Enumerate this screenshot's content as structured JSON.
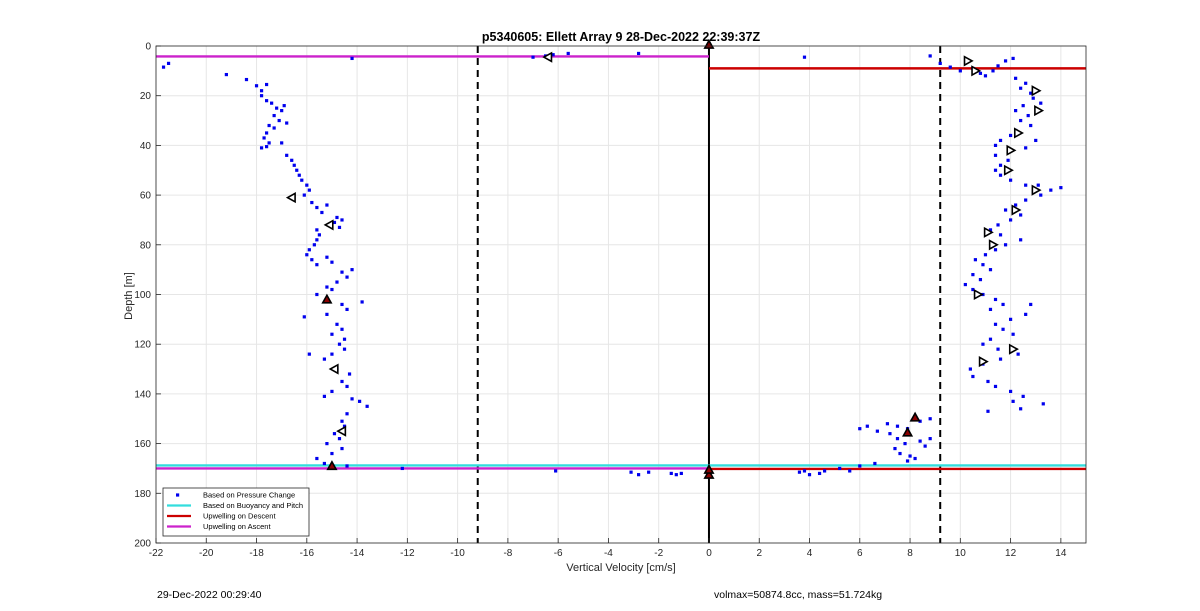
{
  "footer": {
    "left": "29-Dec-2022 00:29:40",
    "right": "volmax=50874.8cc, mass=51.724kg"
  },
  "colors": {
    "pressure": "#0000ee",
    "buoyancy": "#33dddd",
    "descent": "#cc0000",
    "ascent": "#cc22cc",
    "grid": "#e6e6e6",
    "axis": "#262626"
  },
  "chart_data": {
    "type": "scatter",
    "title": "p5340605: Ellett Array 9 28-Dec-2022 22:39:37Z",
    "xlabel": "Vertical Velocity [cm/s]",
    "ylabel": "Depth [m]",
    "xlim": [
      -22,
      15
    ],
    "ylim": [
      0,
      200
    ],
    "y_reversed": true,
    "xticks": [
      -22,
      -20,
      -18,
      -16,
      -14,
      -12,
      -10,
      -8,
      -6,
      -4,
      -2,
      0,
      2,
      4,
      6,
      8,
      10,
      12,
      14
    ],
    "yticks": [
      0,
      20,
      40,
      60,
      80,
      100,
      120,
      140,
      160,
      180,
      200
    ],
    "grid": true,
    "legend_position": "bottom-left",
    "legend": [
      "Based on Pressure Change",
      "Based on Buoyancy and Pitch",
      "Upwelling on Descent",
      "Upwelling on Ascent"
    ],
    "vertical_lines": [
      {
        "x": -9.2,
        "style": "dashed"
      },
      {
        "x": 9.2,
        "style": "dashed"
      },
      {
        "x": 0,
        "style": "solid"
      }
    ],
    "series": [
      {
        "name": "Based on Pressure Change",
        "points": [
          [
            -21.7,
            8.5
          ],
          [
            -21.5,
            7
          ],
          [
            -19.2,
            11.5
          ],
          [
            -18.4,
            13.5
          ],
          [
            -18.0,
            16
          ],
          [
            -17.8,
            18
          ],
          [
            -17.6,
            15.5
          ],
          [
            -17.8,
            20
          ],
          [
            -17.6,
            22
          ],
          [
            -17.4,
            23
          ],
          [
            -17.2,
            25
          ],
          [
            -17.0,
            26
          ],
          [
            -16.9,
            24
          ],
          [
            -17.3,
            28
          ],
          [
            -17.1,
            30
          ],
          [
            -16.8,
            31
          ],
          [
            -17.5,
            32
          ],
          [
            -17.6,
            35
          ],
          [
            -17.3,
            33
          ],
          [
            -17.7,
            37
          ],
          [
            -17.5,
            39
          ],
          [
            -17.8,
            41
          ],
          [
            -17.6,
            40.5
          ],
          [
            -17.0,
            39
          ],
          [
            -16.8,
            44
          ],
          [
            -16.6,
            46
          ],
          [
            -16.5,
            48
          ],
          [
            -16.4,
            50
          ],
          [
            -16.3,
            52
          ],
          [
            -16.2,
            54
          ],
          [
            -16.0,
            56
          ],
          [
            -15.9,
            58
          ],
          [
            -16.1,
            60
          ],
          [
            -15.8,
            63
          ],
          [
            -15.6,
            65
          ],
          [
            -15.4,
            67
          ],
          [
            -15.2,
            64
          ],
          [
            -14.8,
            69
          ],
          [
            -14.6,
            70
          ],
          [
            -14.9,
            71
          ],
          [
            -14.7,
            73
          ],
          [
            -15.6,
            74
          ],
          [
            -15.5,
            76
          ],
          [
            -15.6,
            78
          ],
          [
            -15.7,
            80
          ],
          [
            -15.9,
            82
          ],
          [
            -16.0,
            84
          ],
          [
            -15.8,
            86
          ],
          [
            -15.6,
            88
          ],
          [
            -15.2,
            85
          ],
          [
            -15.0,
            87
          ],
          [
            -14.6,
            91
          ],
          [
            -14.4,
            93
          ],
          [
            -14.2,
            90
          ],
          [
            -14.8,
            95
          ],
          [
            -15.2,
            97
          ],
          [
            -15.6,
            100
          ],
          [
            -15.0,
            98
          ],
          [
            -14.6,
            104
          ],
          [
            -14.4,
            106
          ],
          [
            -13.8,
            103
          ],
          [
            -15.2,
            108
          ],
          [
            -16.1,
            109
          ],
          [
            -14.8,
            112
          ],
          [
            -14.6,
            114
          ],
          [
            -15.0,
            116
          ],
          [
            -14.5,
            118
          ],
          [
            -14.7,
            120
          ],
          [
            -14.5,
            122
          ],
          [
            -15.0,
            124
          ],
          [
            -15.9,
            124
          ],
          [
            -15.3,
            126
          ],
          [
            -14.8,
            130
          ],
          [
            -14.3,
            132
          ],
          [
            -14.6,
            135
          ],
          [
            -14.4,
            137
          ],
          [
            -15.0,
            139
          ],
          [
            -15.3,
            141
          ],
          [
            -14.2,
            142
          ],
          [
            -13.9,
            143
          ],
          [
            -13.6,
            145
          ],
          [
            -14.4,
            148
          ],
          [
            -14.6,
            151
          ],
          [
            -14.5,
            153
          ],
          [
            -14.9,
            156
          ],
          [
            -14.7,
            158
          ],
          [
            -15.2,
            160
          ],
          [
            -14.6,
            162
          ],
          [
            -15.0,
            164
          ],
          [
            -15.6,
            166
          ],
          [
            -15.3,
            168
          ],
          [
            -14.4,
            169
          ],
          [
            -12.2,
            170
          ],
          [
            -6.2,
            3.5
          ],
          [
            -6.5,
            4
          ],
          [
            -7.0,
            4.5
          ],
          [
            -5.6,
            3
          ],
          [
            -2.8,
            3
          ],
          [
            -6.1,
            171
          ],
          [
            -3.1,
            171.5
          ],
          [
            -2.8,
            172.5
          ],
          [
            -2.4,
            171.5
          ],
          [
            -1.5,
            172
          ],
          [
            -1.3,
            172.5
          ],
          [
            -1.1,
            172
          ],
          [
            -14.2,
            5
          ],
          [
            3.8,
            4.5
          ],
          [
            8.8,
            4
          ],
          [
            9.2,
            7
          ],
          [
            9.6,
            8.5
          ],
          [
            10.0,
            10
          ],
          [
            10.3,
            6
          ],
          [
            10.5,
            9
          ],
          [
            10.8,
            11
          ],
          [
            11.0,
            12
          ],
          [
            11.3,
            10
          ],
          [
            11.5,
            8
          ],
          [
            11.8,
            6
          ],
          [
            12.1,
            5
          ],
          [
            12.2,
            13
          ],
          [
            12.6,
            15
          ],
          [
            12.4,
            17
          ],
          [
            12.8,
            19
          ],
          [
            12.9,
            21
          ],
          [
            13.2,
            23
          ],
          [
            12.5,
            24
          ],
          [
            12.2,
            26
          ],
          [
            12.7,
            28
          ],
          [
            12.4,
            30
          ],
          [
            12.8,
            32
          ],
          [
            12.2,
            34
          ],
          [
            12.0,
            36
          ],
          [
            11.6,
            38
          ],
          [
            11.4,
            40
          ],
          [
            13.0,
            38
          ],
          [
            12.6,
            41
          ],
          [
            11.4,
            44
          ],
          [
            11.9,
            46
          ],
          [
            11.6,
            48
          ],
          [
            11.4,
            50
          ],
          [
            11.6,
            52
          ],
          [
            12.0,
            54
          ],
          [
            12.6,
            56
          ],
          [
            13.1,
            56
          ],
          [
            13.6,
            58
          ],
          [
            14.0,
            57
          ],
          [
            13.2,
            60
          ],
          [
            12.6,
            62
          ],
          [
            12.2,
            64
          ],
          [
            11.8,
            66
          ],
          [
            12.4,
            68
          ],
          [
            12.0,
            70
          ],
          [
            11.5,
            72
          ],
          [
            11.2,
            74
          ],
          [
            11.6,
            76
          ],
          [
            12.4,
            78
          ],
          [
            11.8,
            80
          ],
          [
            11.4,
            82
          ],
          [
            11.0,
            84
          ],
          [
            10.6,
            86
          ],
          [
            10.9,
            88
          ],
          [
            11.2,
            90
          ],
          [
            10.5,
            92
          ],
          [
            10.8,
            94
          ],
          [
            10.2,
            96
          ],
          [
            10.5,
            98
          ],
          [
            10.9,
            100
          ],
          [
            11.4,
            102
          ],
          [
            11.7,
            104
          ],
          [
            11.2,
            106
          ],
          [
            12.8,
            104
          ],
          [
            12.6,
            108
          ],
          [
            12.0,
            110
          ],
          [
            11.4,
            112
          ],
          [
            11.7,
            114
          ],
          [
            12.1,
            116
          ],
          [
            11.2,
            118
          ],
          [
            10.9,
            120
          ],
          [
            11.5,
            122
          ],
          [
            12.3,
            124
          ],
          [
            11.6,
            126
          ],
          [
            10.9,
            128
          ],
          [
            10.4,
            130
          ],
          [
            10.5,
            133
          ],
          [
            11.1,
            135
          ],
          [
            11.4,
            137
          ],
          [
            12.0,
            139
          ],
          [
            12.5,
            141
          ],
          [
            12.1,
            143
          ],
          [
            13.3,
            144
          ],
          [
            11.1,
            147
          ],
          [
            12.4,
            146
          ],
          [
            6.0,
            154
          ],
          [
            6.3,
            153
          ],
          [
            7.1,
            152
          ],
          [
            7.5,
            153
          ],
          [
            6.7,
            155
          ],
          [
            7.2,
            156
          ],
          [
            7.9,
            154
          ],
          [
            8.4,
            151
          ],
          [
            8.8,
            150
          ],
          [
            7.5,
            158
          ],
          [
            7.8,
            160
          ],
          [
            8.4,
            159
          ],
          [
            8.8,
            158
          ],
          [
            8.6,
            161
          ],
          [
            7.4,
            162
          ],
          [
            7.6,
            164
          ],
          [
            8.0,
            165
          ],
          [
            8.2,
            166
          ],
          [
            7.9,
            167
          ],
          [
            6.6,
            168
          ],
          [
            6.0,
            169
          ],
          [
            5.2,
            170
          ],
          [
            5.6,
            171
          ],
          [
            4.6,
            171
          ],
          [
            4.4,
            172
          ],
          [
            4.0,
            172.5
          ],
          [
            3.8,
            171
          ],
          [
            3.6,
            171.5
          ]
        ]
      },
      {
        "name": "Based on Buoyancy and Pitch",
        "points": [
          [
            -22,
            168.8
          ],
          [
            15,
            168.8
          ]
        ]
      },
      {
        "name": "Upwelling on Descent",
        "points": [
          [
            0,
            9
          ],
          [
            15,
            9
          ],
          [
            0,
            170.2
          ],
          [
            15,
            170.2
          ]
        ]
      },
      {
        "name": "Upwelling on Ascent",
        "points": [
          [
            -22,
            4.2
          ],
          [
            0,
            4.2
          ],
          [
            -22,
            170
          ],
          [
            0,
            170
          ]
        ]
      }
    ],
    "markers_right": [
      [
        10.3,
        6
      ],
      [
        10.6,
        10
      ],
      [
        13.0,
        18
      ],
      [
        13.1,
        26
      ],
      [
        12.3,
        35
      ],
      [
        12.0,
        42
      ],
      [
        11.9,
        50
      ],
      [
        13.0,
        58
      ],
      [
        12.2,
        66
      ],
      [
        11.1,
        75
      ],
      [
        11.3,
        80
      ],
      [
        10.7,
        100
      ],
      [
        12.1,
        122
      ],
      [
        10.9,
        127
      ]
    ],
    "markers_left": [
      [
        -6.4,
        4.5
      ],
      [
        -16.6,
        61
      ],
      [
        -15.1,
        72
      ],
      [
        -14.9,
        130
      ],
      [
        -14.6,
        155
      ]
    ],
    "markers_up": [
      [
        -15.2,
        102
      ],
      [
        -15.0,
        169
      ],
      [
        0,
        172.5
      ],
      [
        8.2,
        149.5
      ],
      [
        7.9,
        155.5
      ]
    ],
    "markers_zero": [
      [
        0,
        -0.5
      ],
      [
        0,
        170.5
      ]
    ]
  }
}
